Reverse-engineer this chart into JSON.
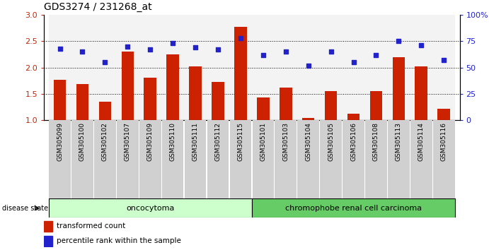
{
  "title": "GDS3274 / 231268_at",
  "samples": [
    "GSM305099",
    "GSM305100",
    "GSM305102",
    "GSM305107",
    "GSM305109",
    "GSM305110",
    "GSM305111",
    "GSM305112",
    "GSM305115",
    "GSM305101",
    "GSM305103",
    "GSM305104",
    "GSM305105",
    "GSM305106",
    "GSM305108",
    "GSM305113",
    "GSM305114",
    "GSM305116"
  ],
  "bar_values": [
    1.77,
    1.68,
    1.35,
    2.3,
    1.8,
    2.25,
    2.02,
    1.72,
    2.77,
    1.43,
    1.62,
    1.04,
    1.55,
    1.12,
    1.55,
    2.2,
    2.02,
    1.22
  ],
  "dot_values": [
    68,
    65,
    55,
    70,
    67,
    73,
    69,
    67,
    78,
    62,
    65,
    52,
    65,
    55,
    62,
    75,
    71,
    57
  ],
  "bar_color": "#cc2200",
  "dot_color": "#2222cc",
  "oncocytoma_count": 9,
  "chromophobe_count": 9,
  "ylim_left": [
    1.0,
    3.0
  ],
  "ylim_right": [
    0,
    100
  ],
  "yticks_left": [
    1.0,
    1.5,
    2.0,
    2.5,
    3.0
  ],
  "yticks_right": [
    0,
    25,
    50,
    75,
    100
  ],
  "ytick_labels_right": [
    "0",
    "25",
    "50",
    "75",
    "100%"
  ],
  "group1_label": "oncocytoma",
  "group2_label": "chromophobe renal cell carcinoma",
  "disease_state_label": "disease state",
  "legend_bar": "transformed count",
  "legend_dot": "percentile rank within the sample",
  "group1_color": "#ccffcc",
  "group2_color": "#66cc66",
  "group_border_color": "#000000",
  "col_bg_color": "#dddddd",
  "grid_color": "#000000"
}
